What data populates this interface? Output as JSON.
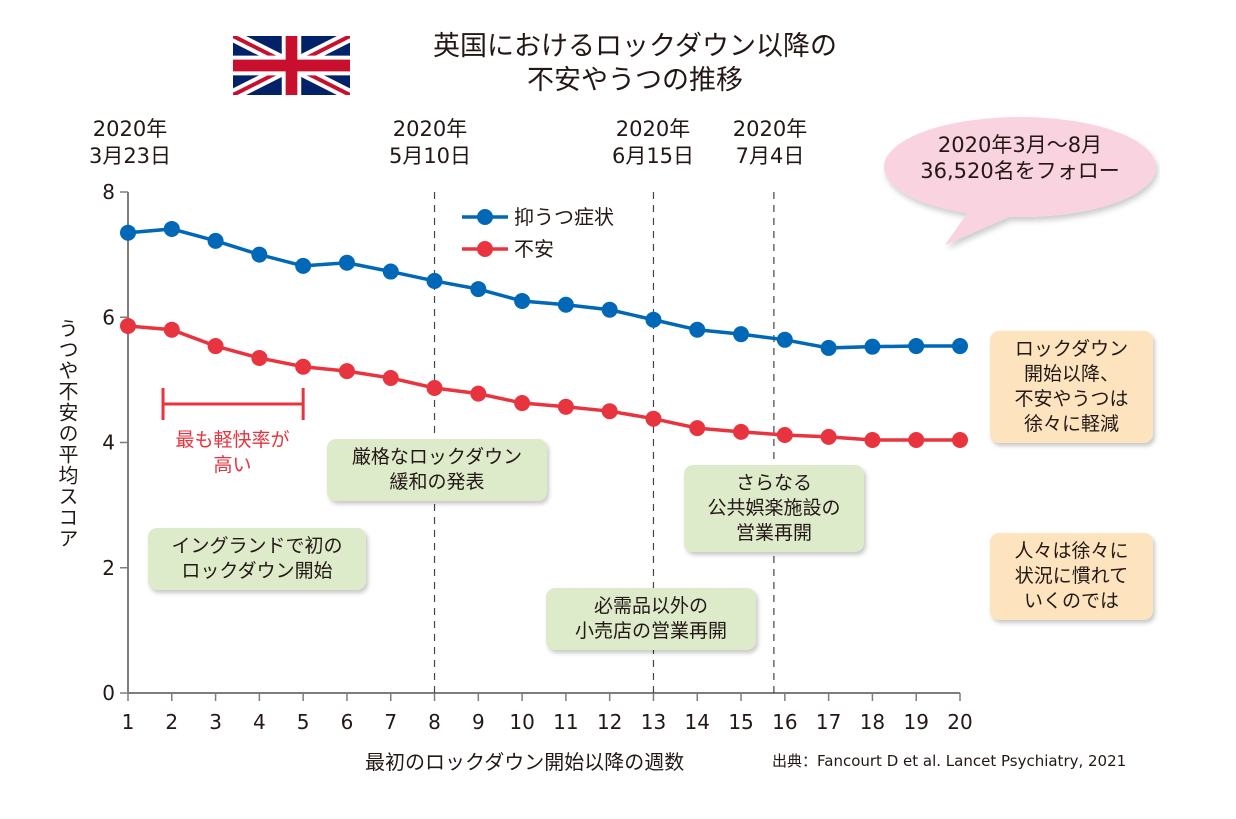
{
  "header": {
    "title_line1": "英国におけるロックダウン以降の",
    "title_line2": "不安やうつの推移",
    "flag_icon": "uk-flag-icon"
  },
  "events": [
    {
      "year": "2020年",
      "date": "3月23日",
      "week": 1
    },
    {
      "year": "2020年",
      "date": "5月10日",
      "week": 8
    },
    {
      "year": "2020年",
      "date": "6月15日",
      "week": 13
    },
    {
      "year": "2020年",
      "date": "7月4日",
      "week": 15.75
    }
  ],
  "bubble": {
    "line1": "2020年3月〜8月",
    "line2": "36,520名をフォロー"
  },
  "annotations": {
    "highest_remission": {
      "line1": "最も軽快率が",
      "line2": "高い",
      "range_weeks": [
        1.8,
        5
      ]
    },
    "first_lockdown": {
      "line1": "イングランドで初の",
      "line2": "ロックダウン開始"
    },
    "easing_announcement": {
      "line1": "厳格なロックダウン",
      "line2": "緩和の発表"
    },
    "retail_reopen": {
      "line1": "必需品以外の",
      "line2": "小売店の営業再開"
    },
    "leisure_reopen": {
      "line1": "さらなる",
      "line2": "公共娯楽施設の",
      "line3": "営業再開"
    },
    "summary_decrease": {
      "line1": "ロックダウン",
      "line2": "開始以降、",
      "line3": "不安やうつは",
      "line4": "徐々に軽減"
    },
    "summary_adapt": {
      "line1": "人々は徐々に",
      "line2": "状況に慣れて",
      "line3": "いくのでは"
    }
  },
  "source": "出典：Fancourt D et al. Lancet Psychiatry, 2021",
  "colors": {
    "depression": "#0068b7",
    "anxiety": "#e8343f",
    "note_green": "#deebcb",
    "note_orange": "#fde4bf",
    "bubble_pink": "#f9d3e0"
  },
  "chart_data": {
    "type": "line",
    "title": "英国におけるロックダウン以降の不安やうつの推移",
    "xlabel": "最初のロックダウン開始以降の週数",
    "ylabel": "うつや不安の平均スコア",
    "x": [
      1,
      2,
      3,
      4,
      5,
      6,
      7,
      8,
      9,
      10,
      11,
      12,
      13,
      14,
      15,
      16,
      17,
      18,
      19,
      20
    ],
    "xticks": [
      "1",
      "2",
      "3",
      "4",
      "5",
      "6",
      "7",
      "8",
      "9",
      "10",
      "11",
      "12",
      "13",
      "14",
      "15",
      "16",
      "17",
      "18",
      "19",
      "20"
    ],
    "yticks": [
      "0",
      "2",
      "4",
      "6",
      "8"
    ],
    "ylim": [
      0,
      8
    ],
    "xlim": [
      1,
      20
    ],
    "grid": false,
    "legend_position": "top-center",
    "series": [
      {
        "name": "抑うつ症状",
        "color": "#0068b7",
        "values": [
          7.35,
          7.41,
          7.22,
          7.0,
          6.82,
          6.87,
          6.73,
          6.58,
          6.45,
          6.26,
          6.2,
          6.12,
          5.96,
          5.8,
          5.73,
          5.64,
          5.51,
          5.53,
          5.54,
          5.54
        ]
      },
      {
        "name": "不安",
        "color": "#e8343f",
        "values": [
          5.86,
          5.8,
          5.54,
          5.35,
          5.21,
          5.14,
          5.03,
          4.87,
          4.78,
          4.63,
          4.57,
          4.5,
          4.38,
          4.23,
          4.17,
          4.12,
          4.09,
          4.04,
          4.04,
          4.04
        ]
      }
    ],
    "vlines_weeks": [
      8,
      13,
      15.75
    ]
  }
}
